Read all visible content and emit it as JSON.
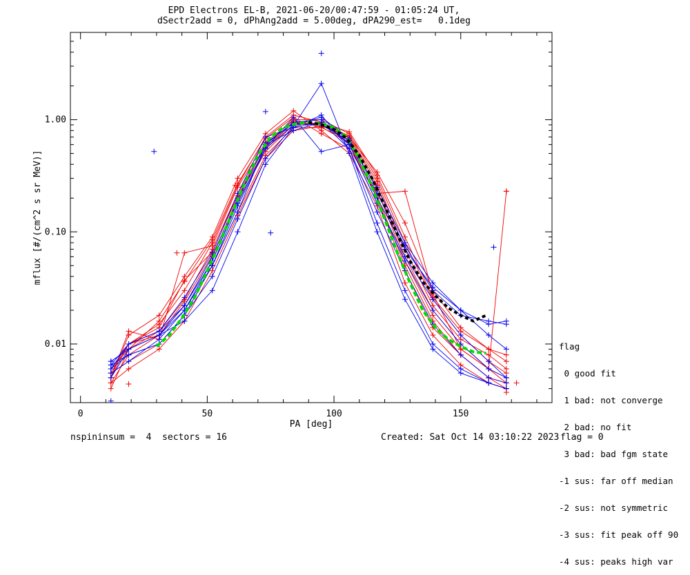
{
  "title_line1": "EPD Electrons EL-B, 2021-06-20/00:47:59 - 01:05:24 UT,",
  "title_line2": "dSectr2add = 0, dPhAng2add = 5.00deg, dPA290_est=   0.1deg",
  "footer": {
    "left": "nspininsum =  4  sectors = 16",
    "created": "Created: Sat Oct 14 03:10:22 2023",
    "flag": "flag = 0"
  },
  "legend": {
    "title": "flag",
    "items": [
      " 0 good fit",
      " 1 bad: not converge",
      " 2 bad: no fit",
      " 3 bad: bad fgm state",
      "-1 sus: far off median",
      "-2 sus: not symmetric",
      "-3 sus: fit peak off 90",
      "-4 sus: peaks high var"
    ]
  },
  "colors": {
    "red": "#ee0000",
    "blue": "#0000ee",
    "green": "#00dd00",
    "black": "#000000"
  },
  "chart_data": {
    "type": "line",
    "xlabel": "PA [deg]",
    "ylabel": "mflux [#/(cm^2 s sr MeV)]",
    "xlim": [
      -4,
      186
    ],
    "ylim": [
      0.003,
      6.0
    ],
    "yscale": "log",
    "xticks": [
      0,
      50,
      100,
      150
    ],
    "xtick_labels": [
      "0",
      "50",
      "100",
      "150"
    ],
    "yticks": [
      0.01,
      0.1,
      1.0
    ],
    "ytick_labels": [
      "0.01",
      "0.10",
      "1.00"
    ],
    "grid": false,
    "legend_position": "right",
    "x": [
      12,
      19,
      31,
      41,
      52,
      62,
      73,
      84,
      95,
      106,
      117,
      128,
      139,
      150,
      161,
      168
    ],
    "series": [
      {
        "color": "red",
        "values": [
          0.0045,
          0.008,
          0.012,
          0.022,
          0.06,
          0.2,
          0.55,
          0.95,
          0.9,
          0.7,
          0.26,
          0.06,
          0.02,
          0.01,
          0.006,
          0.0045
        ]
      },
      {
        "color": "red",
        "values": [
          0.005,
          0.01,
          0.015,
          0.03,
          0.08,
          0.26,
          0.7,
          1.1,
          0.95,
          0.6,
          0.2,
          0.045,
          0.014,
          0.008,
          0.005,
          0.004
        ]
      },
      {
        "color": "red",
        "values": [
          0.006,
          0.009,
          0.013,
          0.025,
          0.07,
          0.22,
          0.6,
          1.0,
          1.0,
          0.75,
          0.3,
          0.08,
          0.025,
          0.012,
          0.007,
          0.0055
        ]
      },
      {
        "color": "red",
        "values": [
          0.0055,
          0.007,
          0.01,
          0.018,
          0.05,
          0.15,
          0.48,
          0.85,
          0.85,
          0.66,
          0.24,
          0.055,
          0.018,
          0.009,
          0.006,
          0.005
        ]
      },
      {
        "color": "red",
        "values": [
          0.005,
          0.012,
          0.018,
          0.04,
          0.09,
          0.3,
          0.75,
          1.2,
          0.8,
          0.5,
          0.17,
          0.035,
          0.012,
          0.0065,
          0.0045,
          0.004
        ]
      },
      {
        "color": "red",
        "values": [
          0.006,
          0.01,
          0.012,
          0.024,
          0.062,
          0.19,
          0.52,
          0.9,
          0.92,
          0.72,
          0.28,
          0.07,
          0.022,
          0.011,
          0.008,
          0.006
        ]
      },
      {
        "color": "red",
        "values": [
          0.0045,
          0.006,
          0.009,
          0.016,
          0.045,
          0.14,
          0.45,
          0.8,
          0.88,
          0.7,
          0.34,
          0.12,
          0.03,
          0.014,
          0.009,
          0.007
        ]
      },
      {
        "color": "red",
        "values": [
          0.004,
          0.009,
          0.016,
          0.036,
          0.085,
          0.27,
          0.68,
          1.05,
          0.75,
          0.55,
          0.22,
          0.23,
          0.028,
          0.009,
          0.006,
          0.23
        ]
      },
      {
        "color": "red",
        "values": [
          0.005,
          0.013,
          0.011,
          0.065,
          0.075,
          0.25,
          0.63,
          0.98,
          0.86,
          0.62,
          0.21,
          0.05,
          0.016,
          0.008,
          0.005,
          0.0045
        ]
      },
      {
        "color": "red",
        "values": [
          0.0055,
          0.01,
          0.014,
          0.037,
          0.066,
          0.21,
          0.58,
          0.93,
          0.93,
          0.78,
          0.32,
          0.09,
          0.026,
          0.013,
          0.009,
          0.008
        ]
      },
      {
        "color": "blue",
        "values": [
          0.007,
          0.009,
          0.012,
          0.022,
          0.06,
          0.2,
          0.6,
          0.95,
          1.0,
          0.6,
          0.18,
          0.06,
          0.025,
          0.012,
          0.007,
          0.005
        ]
      },
      {
        "color": "blue",
        "values": [
          0.0065,
          0.008,
          0.01,
          0.018,
          0.05,
          0.17,
          0.55,
          0.9,
          1.05,
          0.68,
          0.22,
          0.075,
          0.03,
          0.018,
          0.016,
          0.015
        ]
      },
      {
        "color": "blue",
        "values": [
          0.006,
          0.01,
          0.013,
          0.026,
          0.065,
          0.22,
          0.7,
          0.85,
          0.95,
          0.55,
          0.15,
          0.045,
          0.015,
          0.008,
          0.005,
          0.0045
        ]
      },
      {
        "color": "blue",
        "values": [
          0.0055,
          0.007,
          0.011,
          0.02,
          0.055,
          0.19,
          0.62,
          0.92,
          0.9,
          0.65,
          0.2,
          0.07,
          0.032,
          0.02,
          0.015,
          0.016
        ]
      },
      {
        "color": "blue",
        "values": [
          0.007,
          0.009,
          0.012,
          0.016,
          0.03,
          0.1,
          0.4,
          0.85,
          1.1,
          0.55,
          0.12,
          0.03,
          0.01,
          0.006,
          0.0045,
          0.004
        ]
      },
      {
        "color": "blue",
        "values": [
          0.006,
          0.008,
          0.01,
          0.018,
          0.04,
          0.13,
          0.45,
          0.88,
          2.1,
          0.5,
          0.1,
          0.025,
          0.009,
          0.0055,
          0.0045,
          0.004
        ]
      },
      {
        "color": "blue",
        "values": [
          0.0065,
          0.01,
          0.013,
          0.022,
          0.055,
          0.18,
          0.56,
          1.05,
          0.52,
          0.6,
          0.18,
          0.055,
          0.02,
          0.01,
          0.006,
          0.005
        ]
      },
      {
        "color": "blue",
        "values": [
          0.005,
          0.009,
          0.012,
          0.02,
          0.05,
          0.15,
          0.6,
          0.8,
          0.95,
          0.62,
          0.25,
          0.08,
          0.035,
          0.02,
          0.012,
          0.009
        ]
      }
    ],
    "scatter_points": [
      {
        "color": "blue",
        "x": 29,
        "y": 0.52
      },
      {
        "color": "blue",
        "x": 73,
        "y": 1.18
      },
      {
        "color": "blue",
        "x": 75,
        "y": 0.098
      },
      {
        "color": "blue",
        "x": 95,
        "y": 3.9
      },
      {
        "color": "blue",
        "x": 163,
        "y": 0.073
      },
      {
        "color": "blue",
        "x": 12,
        "y": 0.0031
      },
      {
        "color": "red",
        "x": 38,
        "y": 0.065
      },
      {
        "color": "red",
        "x": 61,
        "y": 0.26
      },
      {
        "color": "red",
        "x": 168,
        "y": 0.23
      },
      {
        "color": "red",
        "x": 172,
        "y": 0.0045
      },
      {
        "color": "red",
        "x": 168,
        "y": 0.0037
      },
      {
        "color": "red",
        "x": 19,
        "y": 0.0044
      }
    ],
    "fit_green": {
      "x": [
        30,
        35,
        40,
        45,
        50,
        55,
        60,
        65,
        70,
        75,
        80,
        85,
        90,
        95,
        100,
        105,
        110,
        115,
        120,
        125,
        130,
        135,
        140,
        145,
        150,
        155,
        160
      ],
      "values": [
        0.0095,
        0.012,
        0.017,
        0.026,
        0.045,
        0.08,
        0.15,
        0.28,
        0.48,
        0.7,
        0.85,
        0.92,
        0.95,
        0.92,
        0.85,
        0.7,
        0.45,
        0.25,
        0.13,
        0.065,
        0.035,
        0.02,
        0.014,
        0.011,
        0.0095,
        0.0085,
        0.0083
      ]
    },
    "fit_black": {
      "x": [
        90,
        95,
        100,
        105,
        110,
        115,
        120,
        125,
        130,
        135,
        140,
        145,
        150,
        155,
        160
      ],
      "values": [
        0.95,
        0.9,
        0.82,
        0.68,
        0.48,
        0.3,
        0.17,
        0.095,
        0.055,
        0.036,
        0.027,
        0.021,
        0.018,
        0.016,
        0.018
      ]
    }
  }
}
